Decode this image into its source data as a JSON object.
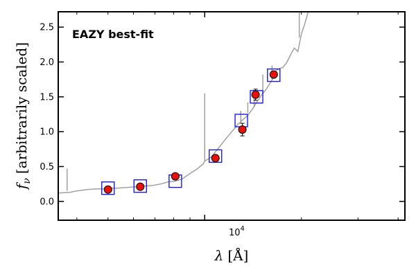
{
  "chart_data": {
    "type": "scatter",
    "title": "",
    "annotation": "EAZY best-fit",
    "xlabel": "λ [Å]",
    "ylabel": "f_ν [arbitrarily scaled]",
    "ylabel_symbol": "f",
    "ylabel_subscript": "ν",
    "ylabel_text": "[arbitrarily scaled]",
    "xlabel_symbol": "λ",
    "xlabel_unit": "[Å]",
    "xscale": "log",
    "xlim": [
      3500,
      42000
    ],
    "ylim": [
      -0.27,
      2.72
    ],
    "yticks": [
      0.0,
      0.5,
      1.0,
      1.5,
      2.0,
      2.5
    ],
    "ytick_labels": [
      "0.0",
      "0.5",
      "1.0",
      "1.5",
      "2.0",
      "2.5"
    ],
    "xticks": [
      10000
    ],
    "xtick_label_base": "10",
    "xtick_label_exp": "4",
    "grid": false,
    "colors": {
      "template": "#a0a0a0",
      "model_box": "#1a1ae6",
      "observed_fill": "#e8120c",
      "observed_edge": "#000000",
      "annotation": "#e8120c",
      "errorbar": "#000000"
    },
    "series": [
      {
        "name": "EAZY best-fit template",
        "style": "line",
        "x": [
          3500,
          3800,
          4000,
          4300,
          4600,
          4950,
          5000,
          5300,
          5700,
          6100,
          6500,
          6900,
          7300,
          7700,
          8100,
          8500,
          9000,
          9500,
          9900,
          10000,
          10200,
          10500,
          10800,
          11200,
          11600,
          12000,
          12400,
          12700,
          12800,
          13200,
          13600,
          13800,
          14200,
          14600,
          15000,
          15500,
          16000,
          16300,
          16500,
          17000,
          17500,
          18000,
          18500,
          19000,
          19500,
          20000,
          20500,
          21000
        ],
        "y": [
          0.12,
          0.13,
          0.15,
          0.17,
          0.18,
          0.18,
          0.19,
          0.19,
          0.2,
          0.21,
          0.22,
          0.23,
          0.25,
          0.28,
          0.29,
          0.32,
          0.4,
          0.47,
          0.54,
          0.58,
          0.6,
          0.64,
          0.71,
          0.8,
          0.89,
          0.97,
          1.05,
          1.11,
          1.12,
          1.18,
          1.23,
          1.27,
          1.35,
          1.44,
          1.52,
          1.6,
          1.7,
          1.76,
          1.86,
          1.9,
          1.92,
          1.99,
          2.1,
          2.2,
          2.15,
          2.4,
          2.55,
          2.72
        ]
      },
      {
        "name": "Template emission lines",
        "style": "spikes",
        "x": [
          3730,
          10000,
          12950,
          13620,
          14260,
          15170,
          16200,
          19700
        ],
        "base": [
          0.15,
          0.57,
          1.12,
          1.27,
          1.35,
          1.55,
          1.75,
          2.35
        ],
        "peak": [
          0.47,
          1.55,
          1.3,
          1.42,
          1.52,
          1.82,
          1.95,
          2.72
        ]
      },
      {
        "name": "Model photometry",
        "style": "open-square",
        "x": [
          5000,
          6300,
          8100,
          10800,
          13000,
          14500,
          16400
        ],
        "y": [
          0.19,
          0.22,
          0.29,
          0.65,
          1.16,
          1.5,
          1.81
        ]
      },
      {
        "name": "Observed photometry",
        "style": "filled-circle-errorbar",
        "x": [
          5000,
          6300,
          8100,
          10800,
          13100,
          14400,
          16400
        ],
        "y": [
          0.17,
          0.21,
          0.36,
          0.62,
          1.03,
          1.53,
          1.82
        ],
        "yerr": [
          0.02,
          0.02,
          0.03,
          0.04,
          0.09,
          0.08,
          0.03
        ]
      }
    ]
  }
}
